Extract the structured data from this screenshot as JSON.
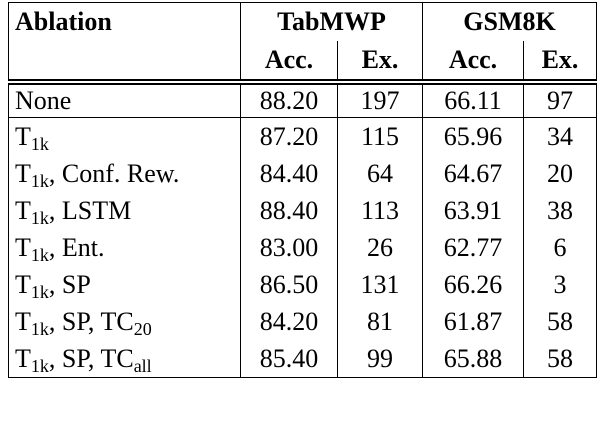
{
  "header": {
    "col0": "Ablation",
    "group1": "TabMWP",
    "group2": "GSM8K",
    "sub": [
      "Acc.",
      "Ex.",
      "Acc.",
      "Ex."
    ]
  },
  "table": {
    "rows": [
      {
        "label": [
          "None"
        ],
        "cells": [
          "88.20",
          "197",
          "66.11",
          "97"
        ]
      },
      {
        "label": [
          "T",
          "1k"
        ],
        "cells": [
          "87.20",
          "115",
          "65.96",
          "34"
        ]
      },
      {
        "label": [
          "T",
          "1k",
          ", Conf. Rew."
        ],
        "cells": [
          "84.40",
          "64",
          "64.67",
          "20"
        ]
      },
      {
        "label": [
          "T",
          "1k",
          ", LSTM"
        ],
        "cells": [
          "88.40",
          "113",
          "63.91",
          "38"
        ]
      },
      {
        "label": [
          "T",
          "1k",
          ", Ent."
        ],
        "cells": [
          "83.00",
          "26",
          "62.77",
          "6"
        ]
      },
      {
        "label": [
          "T",
          "1k",
          ", SP"
        ],
        "cells": [
          "86.50",
          "131",
          "66.26",
          "3"
        ]
      },
      {
        "label": [
          "T",
          "1k",
          ", SP, TC",
          "20"
        ],
        "cells": [
          "84.20",
          "81",
          "61.87",
          "58"
        ]
      },
      {
        "label": [
          "T",
          "1k",
          ", SP, TC",
          "all"
        ],
        "cells": [
          "85.40",
          "99",
          "65.88",
          "58"
        ]
      }
    ]
  }
}
